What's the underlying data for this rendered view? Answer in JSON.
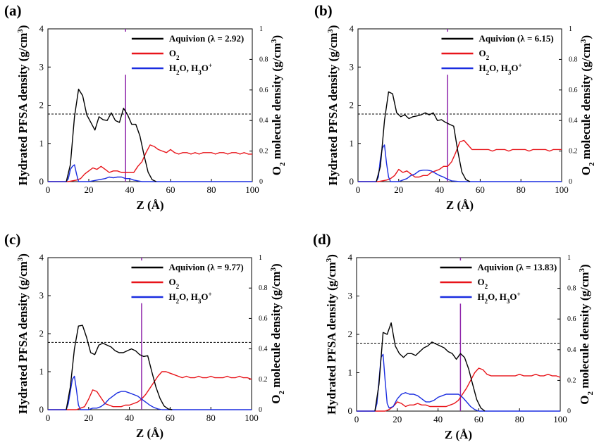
{
  "figure": {
    "left_axis_label": "Hydrated PFSA density (g/cm",
    "left_axis_label_sup": "3",
    "left_axis_label_end": ")",
    "right_axis_label": "O",
    "right_axis_label_sub": "2",
    "right_axis_label_rest": " molecule density (g/cm",
    "right_axis_label_sup": "3",
    "right_axis_label_end": ")",
    "x_axis_label": "Z (Å)",
    "legend_o2": "O",
    "legend_o2_sub": "2",
    "legend_water_a": "H",
    "legend_water_a_sub": "2",
    "legend_water_b": "O, H",
    "legend_water_b_sub": "3",
    "legend_water_c": "O",
    "legend_water_c_sup": "+",
    "colors": {
      "aquivion": "#000000",
      "o2": "#e8141a",
      "water": "#1a2de0",
      "marker": "#8e24aa",
      "reference": "#000000"
    }
  },
  "chart_data": [
    {
      "panel": "(a)",
      "type": "line",
      "legend_aquivion": "Aquivion   (λ = 2.92)",
      "xlim": [
        0,
        100
      ],
      "x_ticks": [
        0,
        20,
        40,
        60,
        80,
        100
      ],
      "ylim_left": [
        0,
        4
      ],
      "y_ticks_left": [
        0,
        1,
        2,
        3,
        4
      ],
      "ylim_right": [
        0,
        1
      ],
      "y_ticks_right": [
        "0",
        "0.2",
        "0.4",
        "0.6",
        "0.8",
        "1"
      ],
      "reference_line_y": 1.77,
      "marker_line_x": 38,
      "series": [
        {
          "key": "aquivion",
          "axis": "left",
          "x": [
            9,
            11,
            13,
            15,
            17,
            19,
            21,
            23,
            25,
            27,
            29,
            31,
            33,
            35,
            37,
            39,
            41,
            43,
            45,
            47,
            49,
            51,
            53
          ],
          "y": [
            0,
            0.45,
            1.7,
            2.42,
            2.25,
            1.75,
            1.55,
            1.35,
            1.7,
            1.62,
            1.6,
            1.8,
            1.6,
            1.55,
            1.92,
            1.75,
            1.5,
            1.5,
            1.2,
            0.7,
            0.25,
            0.05,
            0
          ]
        },
        {
          "key": "o2",
          "axis": "right",
          "x": [
            0,
            10,
            14,
            16,
            18,
            20,
            22,
            24,
            26,
            28,
            30,
            32,
            34,
            36,
            38,
            40,
            42,
            44,
            46,
            48,
            50,
            52,
            54,
            56,
            58,
            60,
            62,
            64,
            66,
            68,
            70,
            72,
            74,
            76,
            78,
            80,
            82,
            84,
            86,
            88,
            90,
            92,
            94,
            96,
            98,
            100
          ],
          "y": [
            0,
            0,
            0.01,
            0.02,
            0.05,
            0.07,
            0.09,
            0.08,
            0.1,
            0.08,
            0.06,
            0.07,
            0.07,
            0.06,
            0.06,
            0.06,
            0.06,
            0.1,
            0.13,
            0.19,
            0.24,
            0.23,
            0.21,
            0.2,
            0.19,
            0.21,
            0.19,
            0.18,
            0.19,
            0.19,
            0.18,
            0.19,
            0.18,
            0.19,
            0.19,
            0.19,
            0.18,
            0.19,
            0.19,
            0.18,
            0.19,
            0.19,
            0.18,
            0.19,
            0.18,
            0.18
          ]
        },
        {
          "key": "water",
          "axis": "right",
          "x": [
            0,
            9,
            10,
            11,
            12,
            13,
            14,
            15,
            16,
            18,
            20,
            24,
            28,
            30,
            32,
            34,
            36,
            38,
            40,
            42,
            44,
            46,
            50,
            60,
            70,
            80,
            90,
            100
          ],
          "y": [
            0,
            0,
            0.02,
            0.08,
            0.1,
            0.11,
            0.05,
            0.0,
            0.0,
            0.0,
            0.0,
            0.01,
            0.02,
            0.03,
            0.025,
            0.03,
            0.03,
            0.02,
            0.02,
            0.01,
            0.005,
            0,
            0,
            0,
            0,
            0,
            0,
            0
          ]
        }
      ]
    },
    {
      "panel": "(b)",
      "type": "line",
      "legend_aquivion": "Aquivion   (λ = 6.15)",
      "xlim": [
        0,
        100
      ],
      "x_ticks": [
        0,
        20,
        40,
        60,
        80,
        100
      ],
      "ylim_left": [
        0,
        4
      ],
      "y_ticks_left": [
        0,
        1,
        2,
        3,
        4
      ],
      "ylim_right": [
        0,
        1
      ],
      "y_ticks_right": [
        "0",
        "0.2",
        "0.4",
        "0.6",
        "0.8",
        "1"
      ],
      "reference_line_y": 1.77,
      "marker_line_x": 44,
      "series": [
        {
          "key": "aquivion",
          "axis": "left",
          "x": [
            9,
            11,
            13,
            15,
            17,
            19,
            21,
            23,
            25,
            27,
            29,
            31,
            33,
            35,
            37,
            39,
            41,
            43,
            45,
            47,
            49,
            51,
            53,
            55
          ],
          "y": [
            0,
            0.4,
            1.6,
            2.35,
            2.3,
            1.8,
            1.7,
            1.75,
            1.65,
            1.7,
            1.72,
            1.75,
            1.8,
            1.75,
            1.8,
            1.6,
            1.62,
            1.55,
            1.5,
            1.45,
            0.8,
            0.25,
            0.05,
            0
          ]
        },
        {
          "key": "o2",
          "axis": "right",
          "x": [
            0,
            10,
            14,
            16,
            18,
            20,
            22,
            24,
            26,
            28,
            30,
            32,
            34,
            36,
            38,
            40,
            42,
            44,
            46,
            48,
            50,
            52,
            54,
            56,
            58,
            60,
            62,
            64,
            66,
            68,
            70,
            72,
            74,
            76,
            78,
            80,
            82,
            84,
            86,
            88,
            90,
            92,
            94,
            96,
            98,
            100
          ],
          "y": [
            0,
            0,
            0.01,
            0.02,
            0.04,
            0.08,
            0.06,
            0.07,
            0.05,
            0.03,
            0.03,
            0.04,
            0.04,
            0.06,
            0.07,
            0.08,
            0.1,
            0.1,
            0.13,
            0.19,
            0.26,
            0.27,
            0.24,
            0.21,
            0.21,
            0.21,
            0.21,
            0.21,
            0.2,
            0.21,
            0.21,
            0.21,
            0.2,
            0.21,
            0.21,
            0.21,
            0.21,
            0.2,
            0.21,
            0.21,
            0.21,
            0.21,
            0.2,
            0.21,
            0.21,
            0.21
          ]
        },
        {
          "key": "water",
          "axis": "right",
          "x": [
            0,
            9,
            10,
            11,
            12,
            13,
            14,
            15,
            16,
            18,
            20,
            22,
            24,
            26,
            28,
            30,
            32,
            34,
            36,
            38,
            40,
            42,
            44,
            46,
            50,
            60,
            70,
            80,
            90,
            100
          ],
          "y": [
            0,
            0,
            0.03,
            0.15,
            0.22,
            0.24,
            0.12,
            0.03,
            0.0,
            0.0,
            0.0,
            0.01,
            0.02,
            0.04,
            0.05,
            0.07,
            0.075,
            0.075,
            0.07,
            0.055,
            0.04,
            0.03,
            0.015,
            0.005,
            0,
            0,
            0,
            0,
            0,
            0
          ]
        }
      ]
    },
    {
      "panel": "(c)",
      "type": "line",
      "legend_aquivion": "Aquivion   (λ = 9.77)",
      "xlim": [
        0,
        100
      ],
      "x_ticks": [
        0,
        20,
        40,
        60,
        80,
        100
      ],
      "ylim_left": [
        0,
        4
      ],
      "y_ticks_left": [
        0,
        1,
        2,
        3,
        4
      ],
      "ylim_right": [
        0,
        1
      ],
      "y_ticks_right": [
        "0",
        "0.2",
        "0.4",
        "0.6",
        "0.8",
        "1"
      ],
      "reference_line_y": 1.77,
      "marker_line_x": 46,
      "series": [
        {
          "key": "aquivion",
          "axis": "left",
          "x": [
            9,
            11,
            13,
            15,
            17,
            19,
            21,
            23,
            25,
            27,
            29,
            31,
            33,
            35,
            37,
            39,
            41,
            43,
            45,
            47,
            49,
            51,
            53,
            55,
            57,
            59,
            61
          ],
          "y": [
            0,
            0.6,
            1.6,
            2.2,
            2.22,
            1.9,
            1.5,
            1.45,
            1.7,
            1.75,
            1.7,
            1.65,
            1.55,
            1.5,
            1.5,
            1.55,
            1.6,
            1.55,
            1.45,
            1.4,
            1.42,
            1.0,
            0.6,
            0.3,
            0.1,
            0.02,
            0
          ]
        },
        {
          "key": "o2",
          "axis": "right",
          "x": [
            0,
            10,
            14,
            16,
            18,
            20,
            22,
            24,
            26,
            28,
            30,
            32,
            34,
            36,
            38,
            40,
            42,
            44,
            46,
            48,
            50,
            52,
            54,
            56,
            58,
            60,
            62,
            64,
            66,
            68,
            70,
            72,
            74,
            76,
            78,
            80,
            82,
            84,
            86,
            88,
            90,
            92,
            94,
            96,
            98,
            100
          ],
          "y": [
            0,
            0,
            0.0,
            0.01,
            0.02,
            0.07,
            0.13,
            0.12,
            0.08,
            0.04,
            0.03,
            0.02,
            0.02,
            0.02,
            0.03,
            0.03,
            0.04,
            0.05,
            0.07,
            0.1,
            0.14,
            0.18,
            0.22,
            0.25,
            0.25,
            0.24,
            0.23,
            0.22,
            0.21,
            0.22,
            0.21,
            0.21,
            0.22,
            0.21,
            0.21,
            0.22,
            0.21,
            0.21,
            0.21,
            0.22,
            0.21,
            0.21,
            0.22,
            0.21,
            0.21,
            0.2
          ]
        },
        {
          "key": "water",
          "axis": "right",
          "x": [
            0,
            9,
            10,
            11,
            12,
            13,
            14,
            15,
            16,
            18,
            20,
            22,
            24,
            26,
            28,
            30,
            32,
            34,
            36,
            38,
            40,
            42,
            44,
            46,
            48,
            50,
            52,
            54,
            56,
            60,
            70,
            80,
            90,
            100
          ],
          "y": [
            0,
            0,
            0.04,
            0.12,
            0.2,
            0.22,
            0.13,
            0.03,
            0.0,
            0.0,
            0.0,
            0.01,
            0.01,
            0.02,
            0.04,
            0.07,
            0.09,
            0.11,
            0.12,
            0.12,
            0.11,
            0.1,
            0.09,
            0.07,
            0.05,
            0.03,
            0.015,
            0.005,
            0,
            0,
            0,
            0,
            0,
            0
          ]
        }
      ]
    },
    {
      "panel": "(d)",
      "type": "line",
      "legend_aquivion": "Aquivion   (λ = 13.83)",
      "xlim": [
        0,
        100
      ],
      "x_ticks": [
        0,
        20,
        40,
        60,
        80,
        100
      ],
      "ylim_left": [
        0,
        4
      ],
      "y_ticks_left": [
        0,
        1,
        2,
        3,
        4
      ],
      "ylim_right": [
        0,
        1
      ],
      "y_ticks_right": [
        "0",
        "0.2",
        "0.4",
        "0.6",
        "0.8",
        "1"
      ],
      "reference_line_y": 1.77,
      "marker_line_x": 51,
      "series": [
        {
          "key": "aquivion",
          "axis": "left",
          "x": [
            9,
            11,
            13,
            15,
            17,
            19,
            21,
            23,
            25,
            27,
            29,
            31,
            33,
            35,
            37,
            39,
            41,
            43,
            45,
            47,
            49,
            51,
            53,
            55,
            57,
            59,
            61,
            63
          ],
          "y": [
            0,
            0.7,
            2.05,
            2.0,
            2.3,
            1.7,
            1.5,
            1.4,
            1.5,
            1.5,
            1.45,
            1.55,
            1.65,
            1.7,
            1.8,
            1.75,
            1.7,
            1.65,
            1.55,
            1.5,
            1.35,
            1.5,
            1.4,
            1.1,
            0.7,
            0.3,
            0.08,
            0
          ]
        },
        {
          "key": "o2",
          "axis": "right",
          "x": [
            0,
            10,
            14,
            16,
            18,
            20,
            22,
            24,
            26,
            28,
            30,
            32,
            34,
            36,
            38,
            40,
            42,
            44,
            46,
            48,
            50,
            52,
            54,
            56,
            58,
            60,
            62,
            64,
            66,
            68,
            70,
            72,
            74,
            76,
            78,
            80,
            82,
            84,
            86,
            88,
            90,
            92,
            94,
            96,
            98,
            100
          ],
          "y": [
            0,
            0,
            0.0,
            0.01,
            0.03,
            0.06,
            0.05,
            0.03,
            0.04,
            0.04,
            0.05,
            0.04,
            0.04,
            0.03,
            0.03,
            0.03,
            0.03,
            0.03,
            0.04,
            0.05,
            0.07,
            0.11,
            0.15,
            0.2,
            0.25,
            0.28,
            0.27,
            0.24,
            0.23,
            0.23,
            0.23,
            0.23,
            0.23,
            0.23,
            0.23,
            0.24,
            0.23,
            0.23,
            0.23,
            0.24,
            0.23,
            0.23,
            0.24,
            0.23,
            0.23,
            0.22
          ]
        },
        {
          "key": "water",
          "axis": "right",
          "x": [
            0,
            9,
            10,
            11,
            12,
            13,
            14,
            15,
            16,
            18,
            20,
            22,
            24,
            26,
            28,
            30,
            32,
            34,
            36,
            38,
            40,
            42,
            44,
            46,
            48,
            50,
            52,
            54,
            56,
            58,
            60,
            70,
            80,
            90,
            100
          ],
          "y": [
            0,
            0,
            0.05,
            0.2,
            0.35,
            0.37,
            0.2,
            0.05,
            0.02,
            0.03,
            0.08,
            0.11,
            0.12,
            0.11,
            0.11,
            0.1,
            0.08,
            0.06,
            0.06,
            0.07,
            0.09,
            0.1,
            0.11,
            0.11,
            0.11,
            0.11,
            0.09,
            0.06,
            0.03,
            0.01,
            0,
            0,
            0,
            0,
            0
          ]
        }
      ]
    }
  ]
}
